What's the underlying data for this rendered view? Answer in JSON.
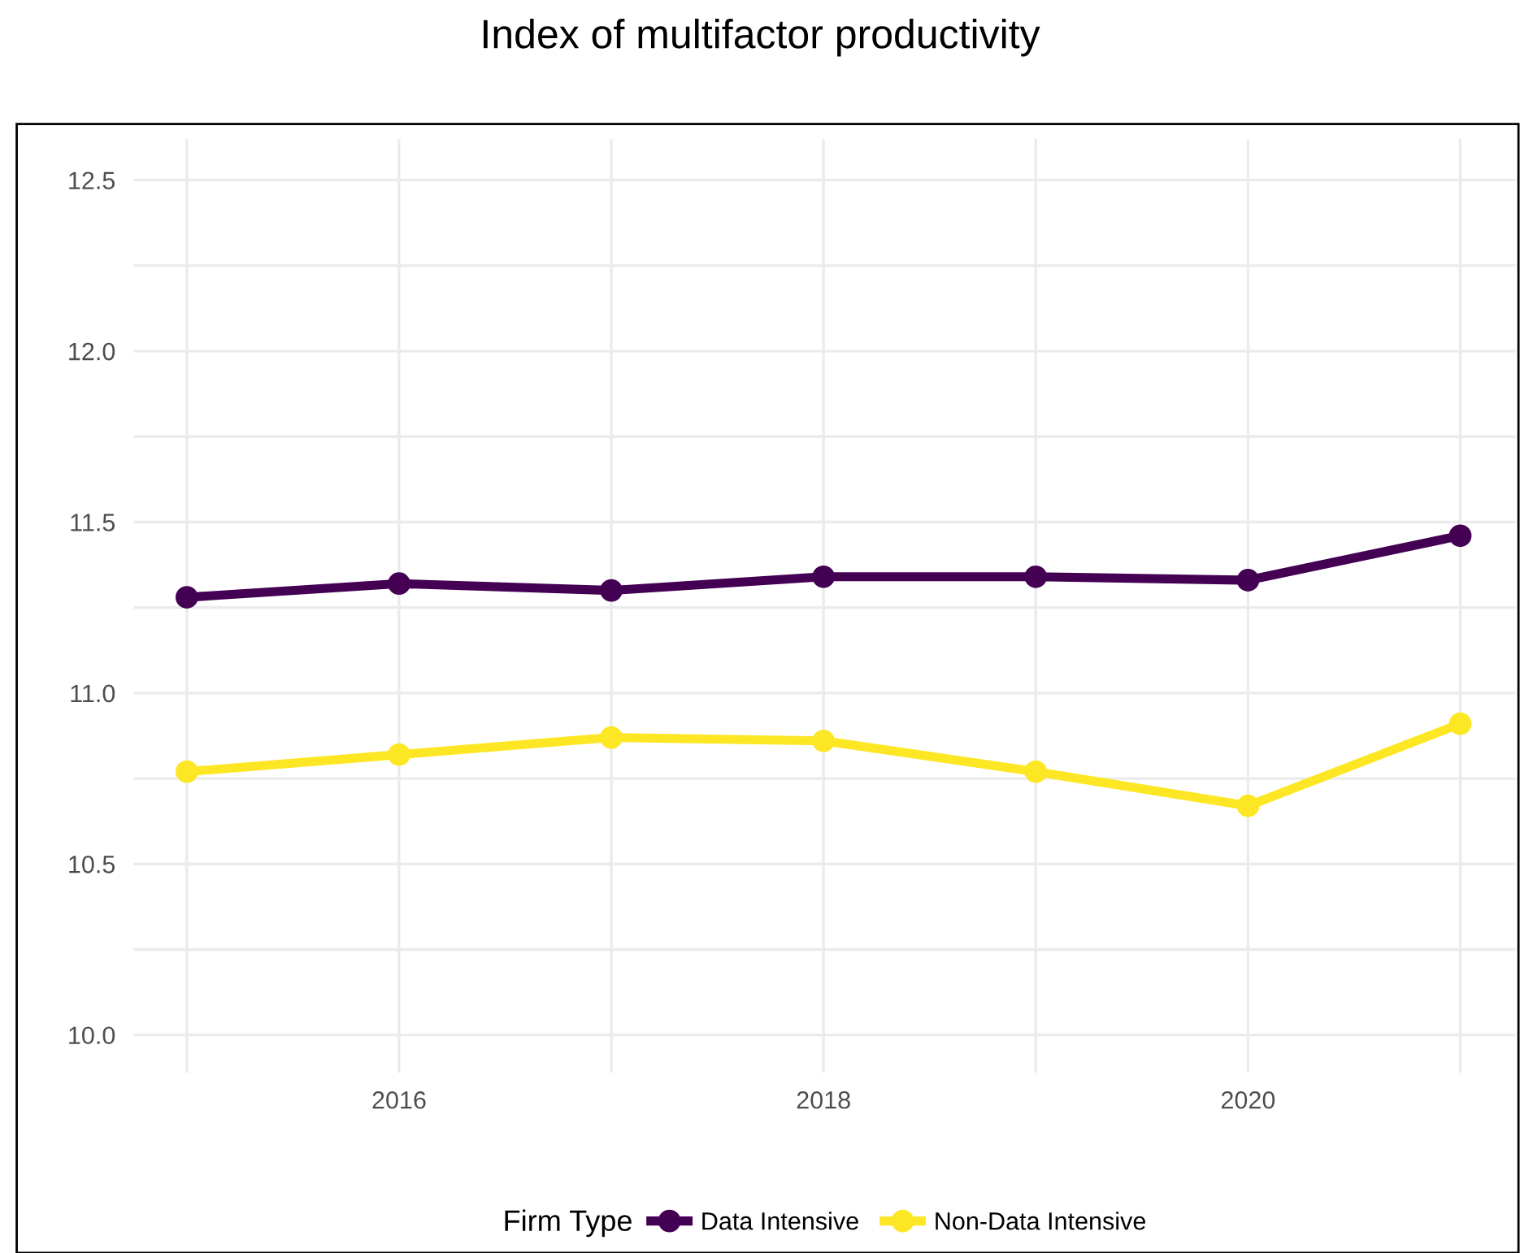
{
  "chart_data": {
    "type": "line",
    "title": "Index of multifactor productivity",
    "legend_title": "Firm Type",
    "x": [
      2015,
      2016,
      2017,
      2018,
      2019,
      2020,
      2021
    ],
    "series": [
      {
        "name": "Data Intensive",
        "color": "#440154",
        "values": [
          11.28,
          11.32,
          11.3,
          11.34,
          11.34,
          11.33,
          11.46
        ]
      },
      {
        "name": "Non-Data Intensive",
        "color": "#fde725",
        "values": [
          10.77,
          10.82,
          10.87,
          10.86,
          10.77,
          10.67,
          10.91
        ]
      }
    ],
    "xlim": [
      2014.75,
      2021.26
    ],
    "ylim": [
      9.89,
      12.62
    ],
    "xticks": [
      {
        "value": 2015,
        "label": null
      },
      2016,
      {
        "value": 2017,
        "label": null
      },
      2018,
      {
        "value": 2019,
        "label": null
      },
      2020,
      {
        "value": 2021,
        "label": null
      }
    ],
    "yticks": [
      {
        "value": 10,
        "label": "10.0"
      },
      {
        "value": 10.25,
        "label": null
      },
      10.5,
      {
        "value": 10.75,
        "label": null
      },
      {
        "value": 11,
        "label": "11.0"
      },
      {
        "value": 11.25,
        "label": null
      },
      11.5,
      {
        "value": 11.75,
        "label": null
      },
      {
        "value": 12,
        "label": "12.0"
      },
      {
        "value": 12.25,
        "label": null
      },
      12.5
    ],
    "grid": true,
    "legend": "bottom",
    "marker": "circle",
    "line_style": "solid"
  }
}
